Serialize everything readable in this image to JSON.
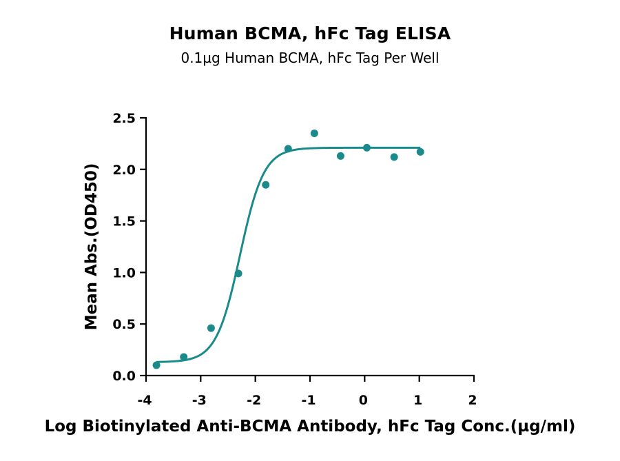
{
  "chart_data": {
    "type": "scatter",
    "title": "Human BCMA, hFc Tag ELISA",
    "subtitle": "0.1µg Human BCMA, hFc Tag Per Well",
    "xlabel": "Log Biotinylated Anti-BCMA Antibody, hFc Tag Conc.(µg/ml)",
    "ylabel": "Mean Abs.(OD450)",
    "xlim": [
      -4,
      2
    ],
    "ylim": [
      0,
      2.5
    ],
    "x_ticks": [
      -4,
      -3,
      -2,
      -1,
      0,
      1,
      2
    ],
    "y_ticks": [
      0.0,
      0.5,
      1.0,
      1.5,
      2.0,
      2.5
    ],
    "x_tick_labels": [
      "-4",
      "-3",
      "-2",
      "-1",
      "0",
      "1",
      "2"
    ],
    "y_tick_labels": [
      "0.0",
      "0.5",
      "1.0",
      "1.5",
      "2.0",
      "2.5"
    ],
    "grid": false,
    "series": [
      {
        "color": "#1a8a8a",
        "points": [
          {
            "x": -3.81,
            "y": 0.1
          },
          {
            "x": -3.31,
            "y": 0.18
          },
          {
            "x": -2.81,
            "y": 0.46
          },
          {
            "x": -2.31,
            "y": 0.99
          },
          {
            "x": -1.81,
            "y": 1.85
          },
          {
            "x": -1.4,
            "y": 2.2
          },
          {
            "x": -0.92,
            "y": 2.35
          },
          {
            "x": -0.44,
            "y": 2.13
          },
          {
            "x": 0.04,
            "y": 2.21
          },
          {
            "x": 0.54,
            "y": 2.12
          },
          {
            "x": 1.02,
            "y": 2.17
          }
        ],
        "fit": {
          "model": "4PL",
          "bottom": 0.13,
          "top": 2.21,
          "log_ec50": -2.28,
          "hill_slope": 2.0,
          "x_range": [
            -3.81,
            1.02
          ]
        }
      }
    ]
  }
}
